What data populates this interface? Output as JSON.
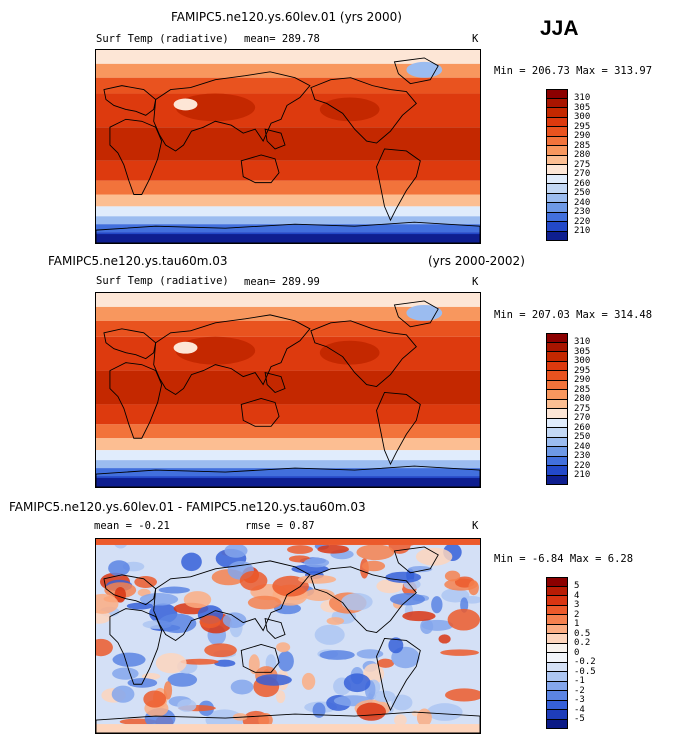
{
  "season": "JJA",
  "panels": [
    {
      "title": "FAMIPC5.ne120.ys.60lev.01 (yrs 2000)",
      "title_right": "",
      "variable": "Surf Temp (radiative)",
      "stat1": "mean= 289.78",
      "stat2": "",
      "units": "K",
      "minmax": "Min = 206.73 Max = 313.97",
      "colorbar": {
        "labels": [
          "310",
          "305",
          "300",
          "295",
          "290",
          "285",
          "280",
          "275",
          "270",
          "260",
          "250",
          "240",
          "230",
          "220",
          "210"
        ],
        "colors": [
          "#8b0000",
          "#a81500",
          "#c42800",
          "#dd3a0e",
          "#e9531f",
          "#f2733b",
          "#f8975e",
          "#fcbe92",
          "#fde6d6",
          "#e0ecfc",
          "#c3d8f5",
          "#9bbcf0",
          "#6e99e6",
          "#4270dd",
          "#2349c9",
          "#0e1e8f"
        ]
      }
    },
    {
      "title": "FAMIPC5.ne120.ys.tau60m.03",
      "title_right": "(yrs 2000-2002)",
      "variable": "Surf Temp (radiative)",
      "stat1": "mean= 289.99",
      "stat2": "",
      "units": "K",
      "minmax": "Min = 207.03 Max = 314.48",
      "colorbar": {
        "labels": [
          "310",
          "305",
          "300",
          "295",
          "290",
          "285",
          "280",
          "275",
          "270",
          "260",
          "250",
          "240",
          "230",
          "220",
          "210"
        ],
        "colors": [
          "#8b0000",
          "#a81500",
          "#c42800",
          "#dd3a0e",
          "#e9531f",
          "#f2733b",
          "#f8975e",
          "#fcbe92",
          "#fde6d6",
          "#e0ecfc",
          "#c3d8f5",
          "#9bbcf0",
          "#6e99e6",
          "#4270dd",
          "#2349c9",
          "#0e1e8f"
        ]
      }
    },
    {
      "title": "FAMIPC5.ne120.ys.60lev.01 - FAMIPC5.ne120.ys.tau60m.03",
      "title_right": "",
      "variable": "",
      "stat1": "mean =  -0.21",
      "stat2": "rmse =   0.87",
      "units": "K",
      "minmax": "Min =  -6.84 Max =   6.28",
      "colorbar": {
        "labels": [
          "5",
          "4",
          "3",
          "2",
          "1",
          "0.5",
          "0.2",
          "0",
          "-0.2",
          "-0.5",
          "-1",
          "-2",
          "-3",
          "-4",
          "-5"
        ],
        "colors": [
          "#8b0000",
          "#b81c05",
          "#d93512",
          "#ec5a2b",
          "#f5814f",
          "#fbad83",
          "#fdd5bd",
          "#f7f2ee",
          "#f1f4fa",
          "#d4e0f6",
          "#adc6f2",
          "#84a6ec",
          "#5b84e3",
          "#3660d8",
          "#1e3dba",
          "#0b1a86"
        ]
      }
    }
  ]
}
